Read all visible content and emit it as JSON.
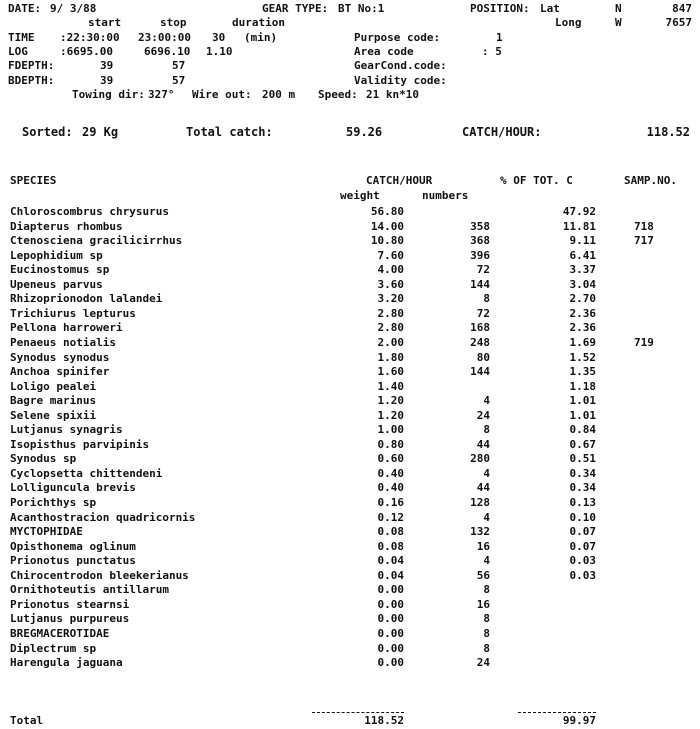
{
  "header": {
    "date_label": "DATE:",
    "date": "9/ 3/88",
    "gear_label": "GEAR TYPE:",
    "gear": "BT No:1",
    "position_label": "POSITION:",
    "lat_label": "Lat",
    "lat_hem": "N",
    "lat": "847",
    "long_label": "Long",
    "long_hem": "W",
    "long": "7657",
    "start_label": "start",
    "stop_label": "stop",
    "duration_label": "duration",
    "time_label": "TIME",
    "time_start": ":22:30:00",
    "time_stop": "23:00:00",
    "time_duration": "30",
    "time_unit": "(min)",
    "log_label": "LOG",
    "log_start": ":6695.00",
    "log_stop": "6696.10",
    "log_duration": "1.10",
    "fdepth_label": "FDEPTH:",
    "fdepth_start": "39",
    "fdepth_stop": "57",
    "bdepth_label": "BDEPTH:",
    "bdepth_start": "39",
    "bdepth_stop": "57",
    "purpose_label": "Purpose code:",
    "purpose": "1",
    "area_label": "Area code",
    "area": ": 5",
    "gearcond_label": "GearCond.code:",
    "validity_label": "Validity code:",
    "towing_label": "Towing dir:",
    "towing": "327°",
    "wire_label": "Wire out:",
    "wire": "200 m",
    "speed_label": "Speed:",
    "speed": "21 kn*10"
  },
  "summary": {
    "sorted_label": "Sorted:",
    "sorted": "29 Kg",
    "total_label": "Total catch:",
    "total": "59.26",
    "cph_label": "CATCH/HOUR:",
    "cph": "118.52"
  },
  "table": {
    "species_header": "SPECIES",
    "catch_header": "CATCH/HOUR",
    "pct_header": "% OF TOT. C",
    "samp_header": "SAMP.NO.",
    "weight_header": "weight",
    "numbers_header": "numbers",
    "rows": [
      {
        "species": "Chloroscombrus chrysurus",
        "weight": "56.80",
        "numbers": "",
        "pct": "47.92",
        "samp": ""
      },
      {
        "species": "Diapterus rhombus",
        "weight": "14.00",
        "numbers": "358",
        "pct": "11.81",
        "samp": "718"
      },
      {
        "species": "Ctenosciena gracilicirrhus",
        "weight": "10.80",
        "numbers": "368",
        "pct": "9.11",
        "samp": "717"
      },
      {
        "species": "Lepophidium sp",
        "weight": "7.60",
        "numbers": "396",
        "pct": "6.41",
        "samp": ""
      },
      {
        "species": "Eucinostomus sp",
        "weight": "4.00",
        "numbers": "72",
        "pct": "3.37",
        "samp": ""
      },
      {
        "species": "Upeneus parvus",
        "weight": "3.60",
        "numbers": "144",
        "pct": "3.04",
        "samp": ""
      },
      {
        "species": "Rhizoprionodon lalandei",
        "weight": "3.20",
        "numbers": "8",
        "pct": "2.70",
        "samp": ""
      },
      {
        "species": "Trichiurus lepturus",
        "weight": "2.80",
        "numbers": "72",
        "pct": "2.36",
        "samp": ""
      },
      {
        "species": "Pellona harroweri",
        "weight": "2.80",
        "numbers": "168",
        "pct": "2.36",
        "samp": ""
      },
      {
        "species": "Penaeus notialis",
        "weight": "2.00",
        "numbers": "248",
        "pct": "1.69",
        "samp": "719"
      },
      {
        "species": "Synodus synodus",
        "weight": "1.80",
        "numbers": "80",
        "pct": "1.52",
        "samp": ""
      },
      {
        "species": "Anchoa spinifer",
        "weight": "1.60",
        "numbers": "144",
        "pct": "1.35",
        "samp": ""
      },
      {
        "species": "Loligo pealei",
        "weight": "1.40",
        "numbers": "",
        "pct": "1.18",
        "samp": ""
      },
      {
        "species": "Bagre marinus",
        "weight": "1.20",
        "numbers": "4",
        "pct": "1.01",
        "samp": ""
      },
      {
        "species": "Selene spixii",
        "weight": "1.20",
        "numbers": "24",
        "pct": "1.01",
        "samp": ""
      },
      {
        "species": "Lutjanus synagris",
        "weight": "1.00",
        "numbers": "8",
        "pct": "0.84",
        "samp": ""
      },
      {
        "species": "Isopisthus parvipinis",
        "weight": "0.80",
        "numbers": "44",
        "pct": "0.67",
        "samp": ""
      },
      {
        "species": "Synodus sp",
        "weight": "0.60",
        "numbers": "280",
        "pct": "0.51",
        "samp": ""
      },
      {
        "species": "Cyclopsetta chittendeni",
        "weight": "0.40",
        "numbers": "4",
        "pct": "0.34",
        "samp": ""
      },
      {
        "species": "Lolliguncula brevis",
        "weight": "0.40",
        "numbers": "44",
        "pct": "0.34",
        "samp": ""
      },
      {
        "species": "Porichthys sp",
        "weight": "0.16",
        "numbers": "128",
        "pct": "0.13",
        "samp": ""
      },
      {
        "species": "Acanthostracion quadricornis",
        "weight": "0.12",
        "numbers": "4",
        "pct": "0.10",
        "samp": ""
      },
      {
        "species": "MYCTOPHIDAE",
        "weight": "0.08",
        "numbers": "132",
        "pct": "0.07",
        "samp": ""
      },
      {
        "species": "Opisthonema oglinum",
        "weight": "0.08",
        "numbers": "16",
        "pct": "0.07",
        "samp": ""
      },
      {
        "species": "Prionotus punctatus",
        "weight": "0.04",
        "numbers": "4",
        "pct": "0.03",
        "samp": ""
      },
      {
        "species": "Chirocentrodon bleekerianus",
        "weight": "0.04",
        "numbers": "56",
        "pct": "0.03",
        "samp": ""
      },
      {
        "species": "Ornithoteutis antillarum",
        "weight": "0.00",
        "numbers": "8",
        "pct": "",
        "samp": ""
      },
      {
        "species": "Prionotus stearnsi",
        "weight": "0.00",
        "numbers": "16",
        "pct": "",
        "samp": ""
      },
      {
        "species": "Lutjanus purpureus",
        "weight": "0.00",
        "numbers": "8",
        "pct": "",
        "samp": ""
      },
      {
        "species": "BREGMACEROTIDAE",
        "weight": "0.00",
        "numbers": "8",
        "pct": "",
        "samp": ""
      },
      {
        "species": "Diplectrum sp",
        "weight": "0.00",
        "numbers": "8",
        "pct": "",
        "samp": ""
      },
      {
        "species": "Harengula jaguana",
        "weight": "0.00",
        "numbers": "24",
        "pct": "",
        "samp": ""
      }
    ],
    "total_label": "Total",
    "total_weight": "118.52",
    "total_pct": "99.97"
  }
}
